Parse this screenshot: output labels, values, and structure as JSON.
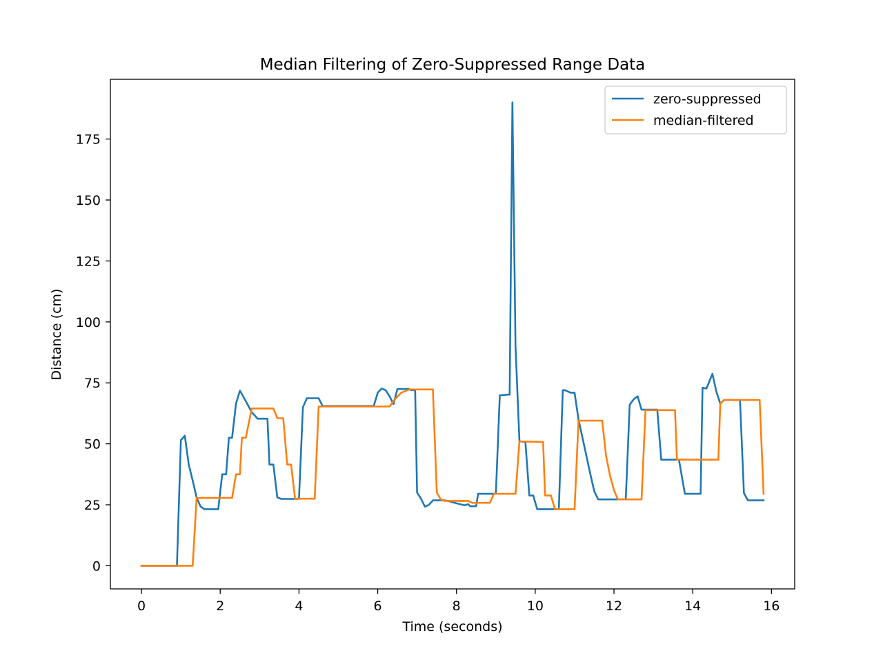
{
  "chart_data": {
    "type": "line",
    "title": "Median Filtering of Zero-Suppressed Range Data",
    "xlabel": "Time (seconds)",
    "ylabel": "Distance (cm)",
    "xlim": [
      -0.79,
      16.59
    ],
    "ylim": [
      -9.5,
      199.5
    ],
    "xticks": [
      0,
      2,
      4,
      6,
      8,
      10,
      12,
      14,
      16
    ],
    "yticks": [
      0,
      25,
      50,
      75,
      100,
      125,
      150,
      175
    ],
    "grid": false,
    "legend_position": "top-right",
    "series": [
      {
        "name": "zero-suppressed",
        "color": "#1f77b4",
        "points": [
          [
            0,
            0
          ],
          [
            0.9,
            0
          ],
          [
            1.0,
            51.5
          ],
          [
            1.1,
            53.3
          ],
          [
            1.2,
            41.5
          ],
          [
            1.3,
            35
          ],
          [
            1.4,
            28
          ],
          [
            1.5,
            24.3
          ],
          [
            1.6,
            23.2
          ],
          [
            1.95,
            23.2
          ],
          [
            2.05,
            37.5
          ],
          [
            2.15,
            37.5
          ],
          [
            2.22,
            52.5
          ],
          [
            2.3,
            52.5
          ],
          [
            2.4,
            66.5
          ],
          [
            2.5,
            71.8
          ],
          [
            2.65,
            67.5
          ],
          [
            2.8,
            63
          ],
          [
            2.95,
            60.3
          ],
          [
            3.2,
            60.3
          ],
          [
            3.25,
            41.5
          ],
          [
            3.35,
            41.5
          ],
          [
            3.45,
            28
          ],
          [
            3.55,
            27.4
          ],
          [
            4.0,
            27.4
          ],
          [
            4.1,
            65
          ],
          [
            4.2,
            68.7
          ],
          [
            4.5,
            68.7
          ],
          [
            4.6,
            65.5
          ],
          [
            5.9,
            65.5
          ],
          [
            6.0,
            71
          ],
          [
            6.1,
            72.7
          ],
          [
            6.2,
            72
          ],
          [
            6.3,
            69.5
          ],
          [
            6.4,
            66.3
          ],
          [
            6.5,
            72.5
          ],
          [
            6.8,
            72.5
          ],
          [
            6.85,
            72
          ],
          [
            6.95,
            72
          ],
          [
            7.0,
            30
          ],
          [
            7.1,
            27.5
          ],
          [
            7.2,
            24.2
          ],
          [
            7.3,
            25
          ],
          [
            7.4,
            26.8
          ],
          [
            7.7,
            26.8
          ],
          [
            7.8,
            26.5
          ],
          [
            8.0,
            25.6
          ],
          [
            8.2,
            24.8
          ],
          [
            8.3,
            25.2
          ],
          [
            8.35,
            24.4
          ],
          [
            8.5,
            24.4
          ],
          [
            8.55,
            29.5
          ],
          [
            9.0,
            29.5
          ],
          [
            9.1,
            69.9
          ],
          [
            9.3,
            70.2
          ],
          [
            9.35,
            70.2
          ],
          [
            9.42,
            190
          ],
          [
            9.5,
            90
          ],
          [
            9.6,
            51
          ],
          [
            9.75,
            50.8
          ],
          [
            9.85,
            28.8
          ],
          [
            9.95,
            28.8
          ],
          [
            10.05,
            23.2
          ],
          [
            10.6,
            23.2
          ],
          [
            10.7,
            72
          ],
          [
            10.75,
            72
          ],
          [
            10.9,
            71
          ],
          [
            11.0,
            71
          ],
          [
            11.1,
            60
          ],
          [
            11.3,
            45
          ],
          [
            11.4,
            37.5
          ],
          [
            11.5,
            30.5
          ],
          [
            11.6,
            27.2
          ],
          [
            12.3,
            27.2
          ],
          [
            12.4,
            66
          ],
          [
            12.5,
            68.3
          ],
          [
            12.6,
            69.5
          ],
          [
            12.7,
            64
          ],
          [
            13.1,
            64
          ],
          [
            13.2,
            43.5
          ],
          [
            13.65,
            43.5
          ],
          [
            13.8,
            29.5
          ],
          [
            14.2,
            29.5
          ],
          [
            14.25,
            73
          ],
          [
            14.35,
            72.7
          ],
          [
            14.5,
            78.7
          ],
          [
            14.6,
            71.5
          ],
          [
            14.7,
            66.5
          ],
          [
            14.8,
            68
          ],
          [
            15.2,
            68
          ],
          [
            15.3,
            29.8
          ],
          [
            15.4,
            26.8
          ],
          [
            15.8,
            26.8
          ]
        ]
      },
      {
        "name": "median-filtered",
        "color": "#ff7f0e",
        "points": [
          [
            0,
            0
          ],
          [
            1.3,
            0
          ],
          [
            1.4,
            27.8
          ],
          [
            2.3,
            27.8
          ],
          [
            2.4,
            37.5
          ],
          [
            2.5,
            37.5
          ],
          [
            2.55,
            52.5
          ],
          [
            2.65,
            52.5
          ],
          [
            2.8,
            64.5
          ],
          [
            3.35,
            64.5
          ],
          [
            3.45,
            60.5
          ],
          [
            3.6,
            60.5
          ],
          [
            3.7,
            41.5
          ],
          [
            3.8,
            41.5
          ],
          [
            3.9,
            27.5
          ],
          [
            4.4,
            27.5
          ],
          [
            4.5,
            65.3
          ],
          [
            6.3,
            65.3
          ],
          [
            6.45,
            68.5
          ],
          [
            6.6,
            71
          ],
          [
            6.8,
            72.3
          ],
          [
            7.4,
            72.3
          ],
          [
            7.5,
            30
          ],
          [
            7.6,
            27.2
          ],
          [
            7.7,
            26.6
          ],
          [
            8.3,
            26.6
          ],
          [
            8.4,
            25.8
          ],
          [
            8.85,
            25.8
          ],
          [
            8.95,
            29.5
          ],
          [
            9.5,
            29.5
          ],
          [
            9.6,
            51
          ],
          [
            10.2,
            50.8
          ],
          [
            10.25,
            28.8
          ],
          [
            10.4,
            28.8
          ],
          [
            10.5,
            23.2
          ],
          [
            11.0,
            23.2
          ],
          [
            11.1,
            59.5
          ],
          [
            11.7,
            59.5
          ],
          [
            11.8,
            45
          ],
          [
            11.9,
            37
          ],
          [
            12.0,
            31
          ],
          [
            12.1,
            27.2
          ],
          [
            12.7,
            27.2
          ],
          [
            12.8,
            63.8
          ],
          [
            13.55,
            63.8
          ],
          [
            13.6,
            43.5
          ],
          [
            14.65,
            43.5
          ],
          [
            14.7,
            66.5
          ],
          [
            14.8,
            68
          ],
          [
            15.7,
            68
          ],
          [
            15.8,
            29.5
          ]
        ]
      }
    ]
  }
}
